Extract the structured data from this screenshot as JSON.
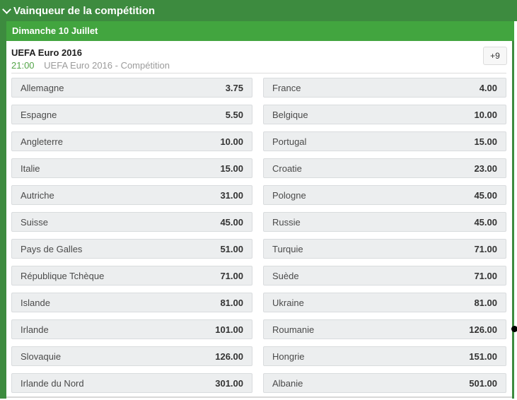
{
  "colors": {
    "dark_green": "#3d8b3f",
    "bright_green": "#42a53f",
    "time_green": "#52a447",
    "row_bg": "#eceeef"
  },
  "accordion_header": {
    "title": "Vainqueur de la compétition"
  },
  "date_header": {
    "label": "Dimanche 10 Juillet"
  },
  "event_card": {
    "title": "UEFA Euro 2016",
    "time": "21:00",
    "competition": "UEFA Euro 2016 - Compétition",
    "more_selections_button": "+9"
  },
  "market": {
    "left_column": [
      {
        "name": "Allemagne",
        "odds": "3.75"
      },
      {
        "name": "Espagne",
        "odds": "5.50"
      },
      {
        "name": "Angleterre",
        "odds": "10.00"
      },
      {
        "name": "Italie",
        "odds": "15.00"
      },
      {
        "name": "Autriche",
        "odds": "31.00"
      },
      {
        "name": "Suisse",
        "odds": "45.00"
      },
      {
        "name": "Pays de Galles",
        "odds": "51.00"
      },
      {
        "name": "République Tchèque",
        "odds": "71.00"
      },
      {
        "name": "Islande",
        "odds": "81.00"
      },
      {
        "name": "Irlande",
        "odds": "101.00"
      },
      {
        "name": "Slovaquie",
        "odds": "126.00"
      },
      {
        "name": "Irlande du Nord",
        "odds": "301.00"
      }
    ],
    "right_column": [
      {
        "name": "France",
        "odds": "4.00"
      },
      {
        "name": "Belgique",
        "odds": "10.00"
      },
      {
        "name": "Portugal",
        "odds": "15.00"
      },
      {
        "name": "Croatie",
        "odds": "23.00"
      },
      {
        "name": "Pologne",
        "odds": "45.00"
      },
      {
        "name": "Russie",
        "odds": "45.00"
      },
      {
        "name": "Turquie",
        "odds": "71.00"
      },
      {
        "name": "Suède",
        "odds": "71.00"
      },
      {
        "name": "Ukraine",
        "odds": "81.00"
      },
      {
        "name": "Roumanie",
        "odds": "126.00"
      },
      {
        "name": "Hongrie",
        "odds": "151.00"
      },
      {
        "name": "Albanie",
        "odds": "501.00"
      }
    ]
  }
}
